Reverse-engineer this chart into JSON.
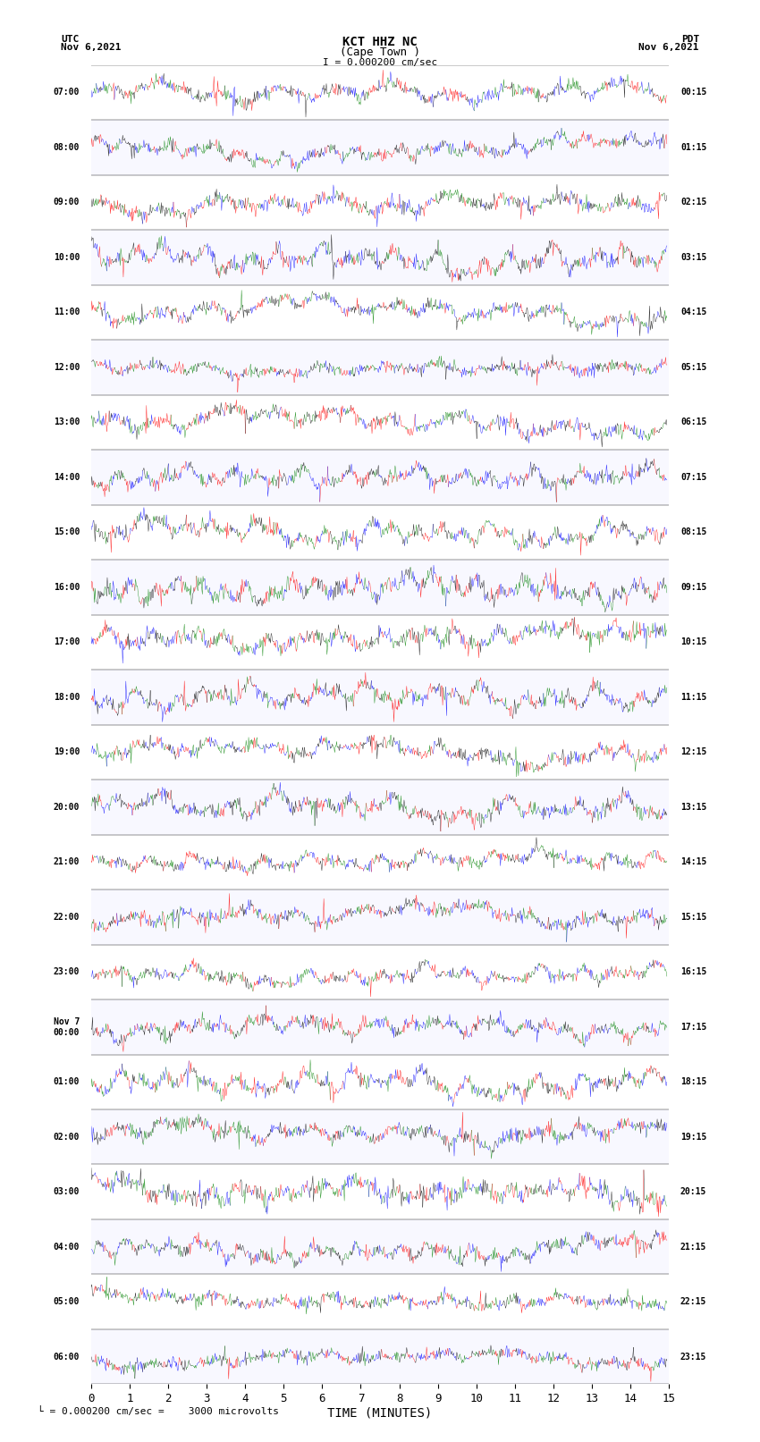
{
  "title_line1": "KCT HHZ NC",
  "title_line2": "(Cape Town )",
  "scale_label": "I = 0.000200 cm/sec",
  "utc_label": "UTC\nNov 6,2021",
  "pdt_label": "PDT\nNov 6,2021",
  "bottom_scale": "└ = 0.000200 cm/sec =    3000 microvolts",
  "xlabel": "TIME (MINUTES)",
  "left_times": [
    "07:00",
    "08:00",
    "09:00",
    "10:00",
    "11:00",
    "12:00",
    "13:00",
    "14:00",
    "15:00",
    "16:00",
    "17:00",
    "18:00",
    "19:00",
    "20:00",
    "21:00",
    "22:00",
    "23:00",
    "Nov 7\n00:00",
    "01:00",
    "02:00",
    "03:00",
    "04:00",
    "05:00",
    "06:00"
  ],
  "right_times": [
    "00:15",
    "01:15",
    "02:15",
    "03:15",
    "04:15",
    "05:15",
    "06:15",
    "07:15",
    "08:15",
    "09:15",
    "10:15",
    "11:15",
    "12:15",
    "13:15",
    "14:15",
    "15:15",
    "16:15",
    "17:15",
    "18:15",
    "19:15",
    "20:15",
    "21:15",
    "22:15",
    "23:15"
  ],
  "n_rows": 24,
  "minutes_per_row": 15,
  "xlim": [
    0,
    15
  ],
  "xticks": [
    0,
    1,
    2,
    3,
    4,
    5,
    6,
    7,
    8,
    9,
    10,
    11,
    12,
    13,
    14,
    15
  ],
  "bg_colors": [
    "#ffffff",
    "#e8e8ff"
  ],
  "colors": [
    "red",
    "blue",
    "green",
    "black"
  ],
  "fig_width": 8.5,
  "fig_height": 16.13,
  "dpi": 100,
  "seed": 42
}
